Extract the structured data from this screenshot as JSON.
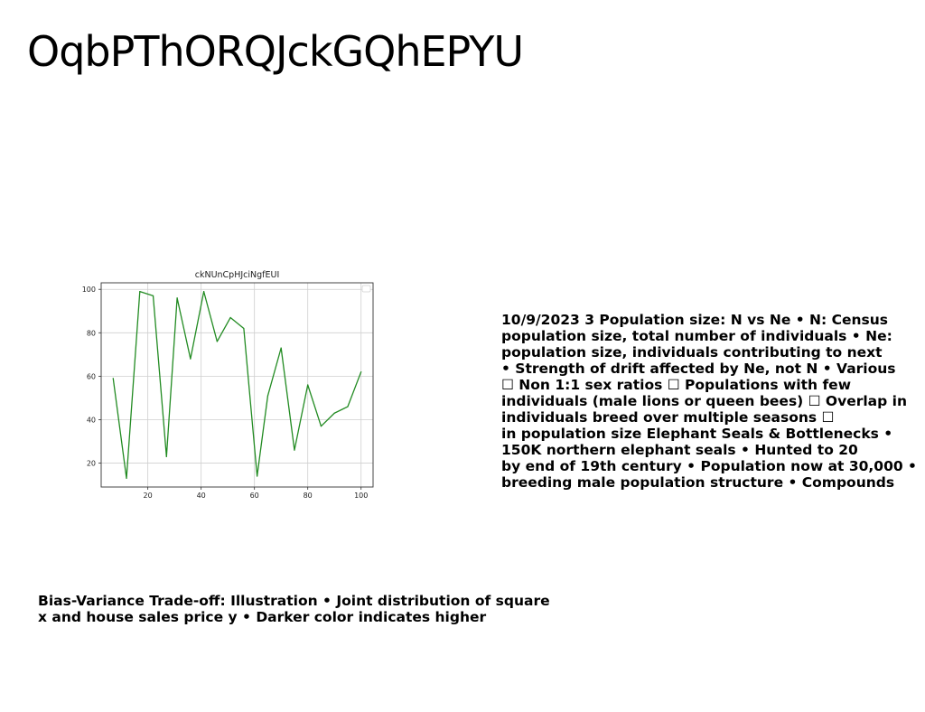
{
  "title": "OqbPThORQJckGQhEPYU",
  "right_text": {
    "lines": [
      "10/9/2023 3 Population size: N vs Ne • N: Census",
      "population size, total number of individuals • Ne:",
      "population size, individuals contributing to next",
      "• Strength of drift affected by Ne, not N • Various",
      "☐ Non 1:1 sex ratios ☐ Populations with few",
      "individuals (male lions or queen bees) ☐ Overlap in",
      "individuals breed over multiple seasons ☐",
      "in population size Elephant Seals & Bottlenecks •",
      "150K northern elephant seals • Hunted to 20",
      "by end of 19th century • Population now at 30,000 •",
      "breeding male population structure • Compounds"
    ]
  },
  "bottom_text": {
    "lines": [
      "Bias-Variance Trade-off: Illustration • Joint distribution of square",
      "x and house sales price y • Darker color indicates higher"
    ]
  },
  "chart_data": {
    "type": "line",
    "title": "ckNUnCpHJciNgfEUI",
    "xlabel": "",
    "ylabel": "",
    "x": [
      7,
      12,
      17,
      22,
      27,
      31,
      36,
      41,
      46,
      51,
      56,
      61,
      65,
      70,
      75,
      80,
      85,
      90,
      95,
      100
    ],
    "series": [
      {
        "values": [
          59,
          13,
          99,
          97,
          23,
          96,
          68,
          99,
          76,
          87,
          82,
          14,
          51,
          73,
          26,
          56,
          37,
          43,
          46,
          62
        ],
        "color": "#228b22"
      }
    ],
    "xlim": [
      2.5,
      104.5
    ],
    "ylim": [
      9,
      103
    ],
    "xticks": [
      20,
      40,
      60,
      80,
      100
    ],
    "yticks": [
      20,
      40,
      60,
      80,
      100
    ],
    "grid": true,
    "legend": "top-right"
  }
}
